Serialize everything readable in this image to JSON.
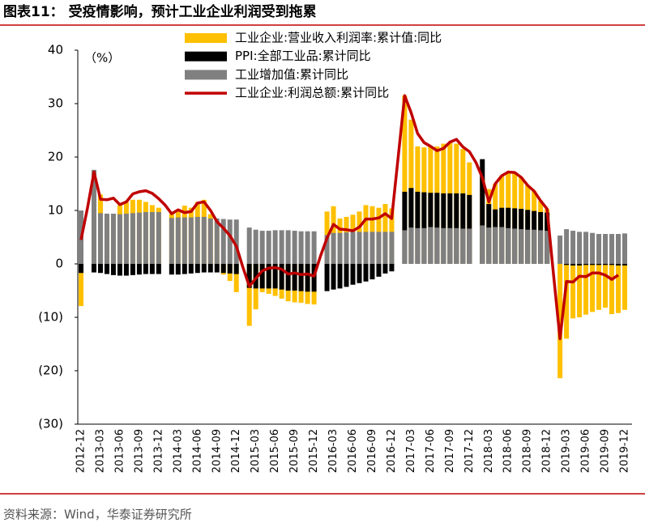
{
  "chart_data": {
    "type": "bar-line",
    "title": "图表11：  受疫情影响，预计工业企业利润受到拖累",
    "unit_label": "（%）",
    "source": "资料来源：Wind，华泰证券研究所",
    "categories": [
      "2012-12",
      null,
      null,
      "2013-03",
      null,
      null,
      "2013-06",
      null,
      null,
      "2013-09",
      null,
      null,
      "2013-12",
      null,
      null,
      "2014-03",
      null,
      null,
      "2014-06",
      null,
      null,
      "2014-09",
      null,
      null,
      "2014-12",
      null,
      null,
      "2015-03",
      null,
      null,
      "2015-06",
      null,
      null,
      "2015-09",
      null,
      null,
      "2015-12",
      null,
      null,
      "2016-03",
      null,
      null,
      "2016-06",
      null,
      null,
      "2016-09",
      null,
      null,
      "2016-12",
      null,
      null,
      "2017-03",
      null,
      null,
      "2017-06",
      null,
      null,
      "2017-09",
      null,
      null,
      "2017-12",
      null,
      null,
      "2018-03",
      null,
      null,
      "2018-06",
      null,
      null,
      "2018-09",
      null,
      null,
      "2018-12",
      null,
      null,
      "2019-03",
      null,
      null,
      "2019-06",
      null,
      null,
      "2019-09",
      null,
      null,
      "2019-12"
    ],
    "series": [
      {
        "name": "工业企业:营业收入利润率:累计值:同比",
        "color": "#ffc000",
        "kind": "bar",
        "values": [
          -7.9,
          null,
          10.5,
          13.0,
          9.0,
          9.2,
          11.0,
          11.6,
          12.0,
          12.0,
          11.6,
          11.0,
          10.5,
          null,
          9.4,
          10.2,
          10.9,
          10.5,
          11.6,
          12.0,
          9.3,
          8.0,
          -2.0,
          -3.2,
          -5.3,
          null,
          -11.6,
          -8.5,
          -5.3,
          -5.6,
          -6.0,
          -6.5,
          -7.0,
          -7.2,
          -7.3,
          -7.5,
          -7.6,
          null,
          9.8,
          10.8,
          8.5,
          8.8,
          9.2,
          9.8,
          11.0,
          10.8,
          10.5,
          11.2,
          10.4,
          null,
          31.5,
          27.0,
          22.0,
          21.8,
          22.0,
          22.0,
          22.5,
          22.7,
          22.5,
          21.5,
          19.0,
          null,
          16.1,
          14.0,
          15.0,
          16.5,
          17.2,
          17.0,
          16.2,
          14.7,
          13.6,
          11.8,
          10.3,
          null,
          -21.4,
          -14.0,
          -10.2,
          -10.0,
          -9.5,
          -9.0,
          -8.6,
          -8.2,
          -9.4,
          -9.2,
          -8.6
        ]
      },
      {
        "name": "PPI:全部工业品:累计同比",
        "color": "#000000",
        "kind": "bar",
        "values": [
          -1.7,
          null,
          -1.6,
          -1.7,
          -1.9,
          -2.1,
          -2.2,
          -2.2,
          -2.1,
          -2.0,
          -1.9,
          -1.9,
          -1.9,
          null,
          -2.0,
          -2.0,
          -1.9,
          -1.8,
          -1.7,
          -1.6,
          -1.6,
          -1.6,
          -1.7,
          -1.8,
          -1.9,
          null,
          -4.5,
          -4.6,
          -4.6,
          -4.6,
          -4.6,
          -4.8,
          -5.0,
          -5.0,
          -5.1,
          -5.2,
          -5.2,
          null,
          -5.1,
          -4.8,
          -4.6,
          -4.3,
          -3.9,
          -3.6,
          -3.3,
          -2.9,
          -2.4,
          -1.8,
          -1.4,
          null,
          13.5,
          14.2,
          13.5,
          13.4,
          13.3,
          13.3,
          13.2,
          13.2,
          13.2,
          13.2,
          12.9,
          null,
          19.6,
          11.2,
          10.2,
          10.5,
          10.5,
          10.4,
          10.3,
          10.1,
          9.9,
          9.7,
          9.6,
          null,
          0.0,
          -0.2,
          -0.3,
          -0.3,
          -0.2,
          -0.2,
          -0.2,
          -0.2,
          -0.2,
          -0.3,
          -0.3
        ]
      },
      {
        "name": "工业增加值:累计同比",
        "color": "#808080",
        "kind": "bar",
        "values": [
          10.0,
          null,
          17.6,
          9.5,
          9.4,
          9.4,
          9.3,
          9.4,
          9.5,
          9.6,
          9.7,
          9.7,
          9.7,
          null,
          8.6,
          8.7,
          8.7,
          8.7,
          8.8,
          8.8,
          8.5,
          8.5,
          8.4,
          8.3,
          8.3,
          null,
          6.8,
          6.4,
          6.2,
          6.2,
          6.3,
          6.3,
          6.3,
          6.2,
          6.1,
          6.1,
          6.1,
          null,
          5.4,
          5.8,
          5.8,
          5.9,
          6.0,
          6.0,
          6.0,
          6.0,
          6.0,
          6.0,
          6.0,
          null,
          6.3,
          6.8,
          6.7,
          6.7,
          6.9,
          6.8,
          6.7,
          6.7,
          6.7,
          6.6,
          6.6,
          null,
          7.2,
          6.8,
          6.9,
          6.9,
          6.7,
          6.6,
          6.5,
          6.4,
          6.4,
          6.3,
          6.2,
          null,
          5.3,
          6.5,
          6.2,
          6.0,
          6.0,
          5.8,
          5.6,
          5.6,
          5.6,
          5.6,
          5.7
        ]
      },
      {
        "name": "工业企业:利润总额:累计同比",
        "color": "#c00000",
        "kind": "line",
        "values": [
          4.5,
          10.5,
          17.2,
          12.1,
          12.0,
          12.3,
          11.1,
          11.6,
          13.1,
          13.5,
          13.7,
          13.2,
          12.2,
          11.0,
          9.4,
          10.1,
          9.6,
          9.8,
          11.4,
          11.6,
          10.0,
          7.9,
          6.7,
          5.3,
          3.3,
          -0.6,
          -4.2,
          -2.7,
          -1.3,
          -0.8,
          -0.7,
          -1.0,
          -1.9,
          -1.7,
          -2.0,
          -1.9,
          -2.3,
          1.5,
          4.8,
          7.4,
          6.5,
          6.4,
          6.2,
          6.9,
          8.4,
          8.4,
          8.6,
          9.4,
          8.5,
          20.0,
          31.5,
          28.3,
          24.4,
          22.7,
          22.0,
          21.2,
          21.6,
          22.8,
          23.3,
          21.9,
          21.0,
          19.0,
          16.1,
          11.6,
          15.0,
          16.5,
          17.2,
          17.1,
          16.2,
          14.7,
          13.6,
          11.8,
          10.3,
          -2.0,
          -14.0,
          -3.3,
          -3.4,
          -2.3,
          -2.4,
          -1.7,
          -1.7,
          -2.1,
          -2.9,
          -2.1,
          null
        ]
      }
    ],
    "ylim": [
      -30,
      40
    ],
    "yticks": [
      {
        "value": -30,
        "label": "(30)"
      },
      {
        "value": -20,
        "label": "(20)"
      },
      {
        "value": -10,
        "label": "(10)"
      },
      0,
      10,
      20,
      30,
      40
    ],
    "grid": false,
    "legend": "top"
  }
}
